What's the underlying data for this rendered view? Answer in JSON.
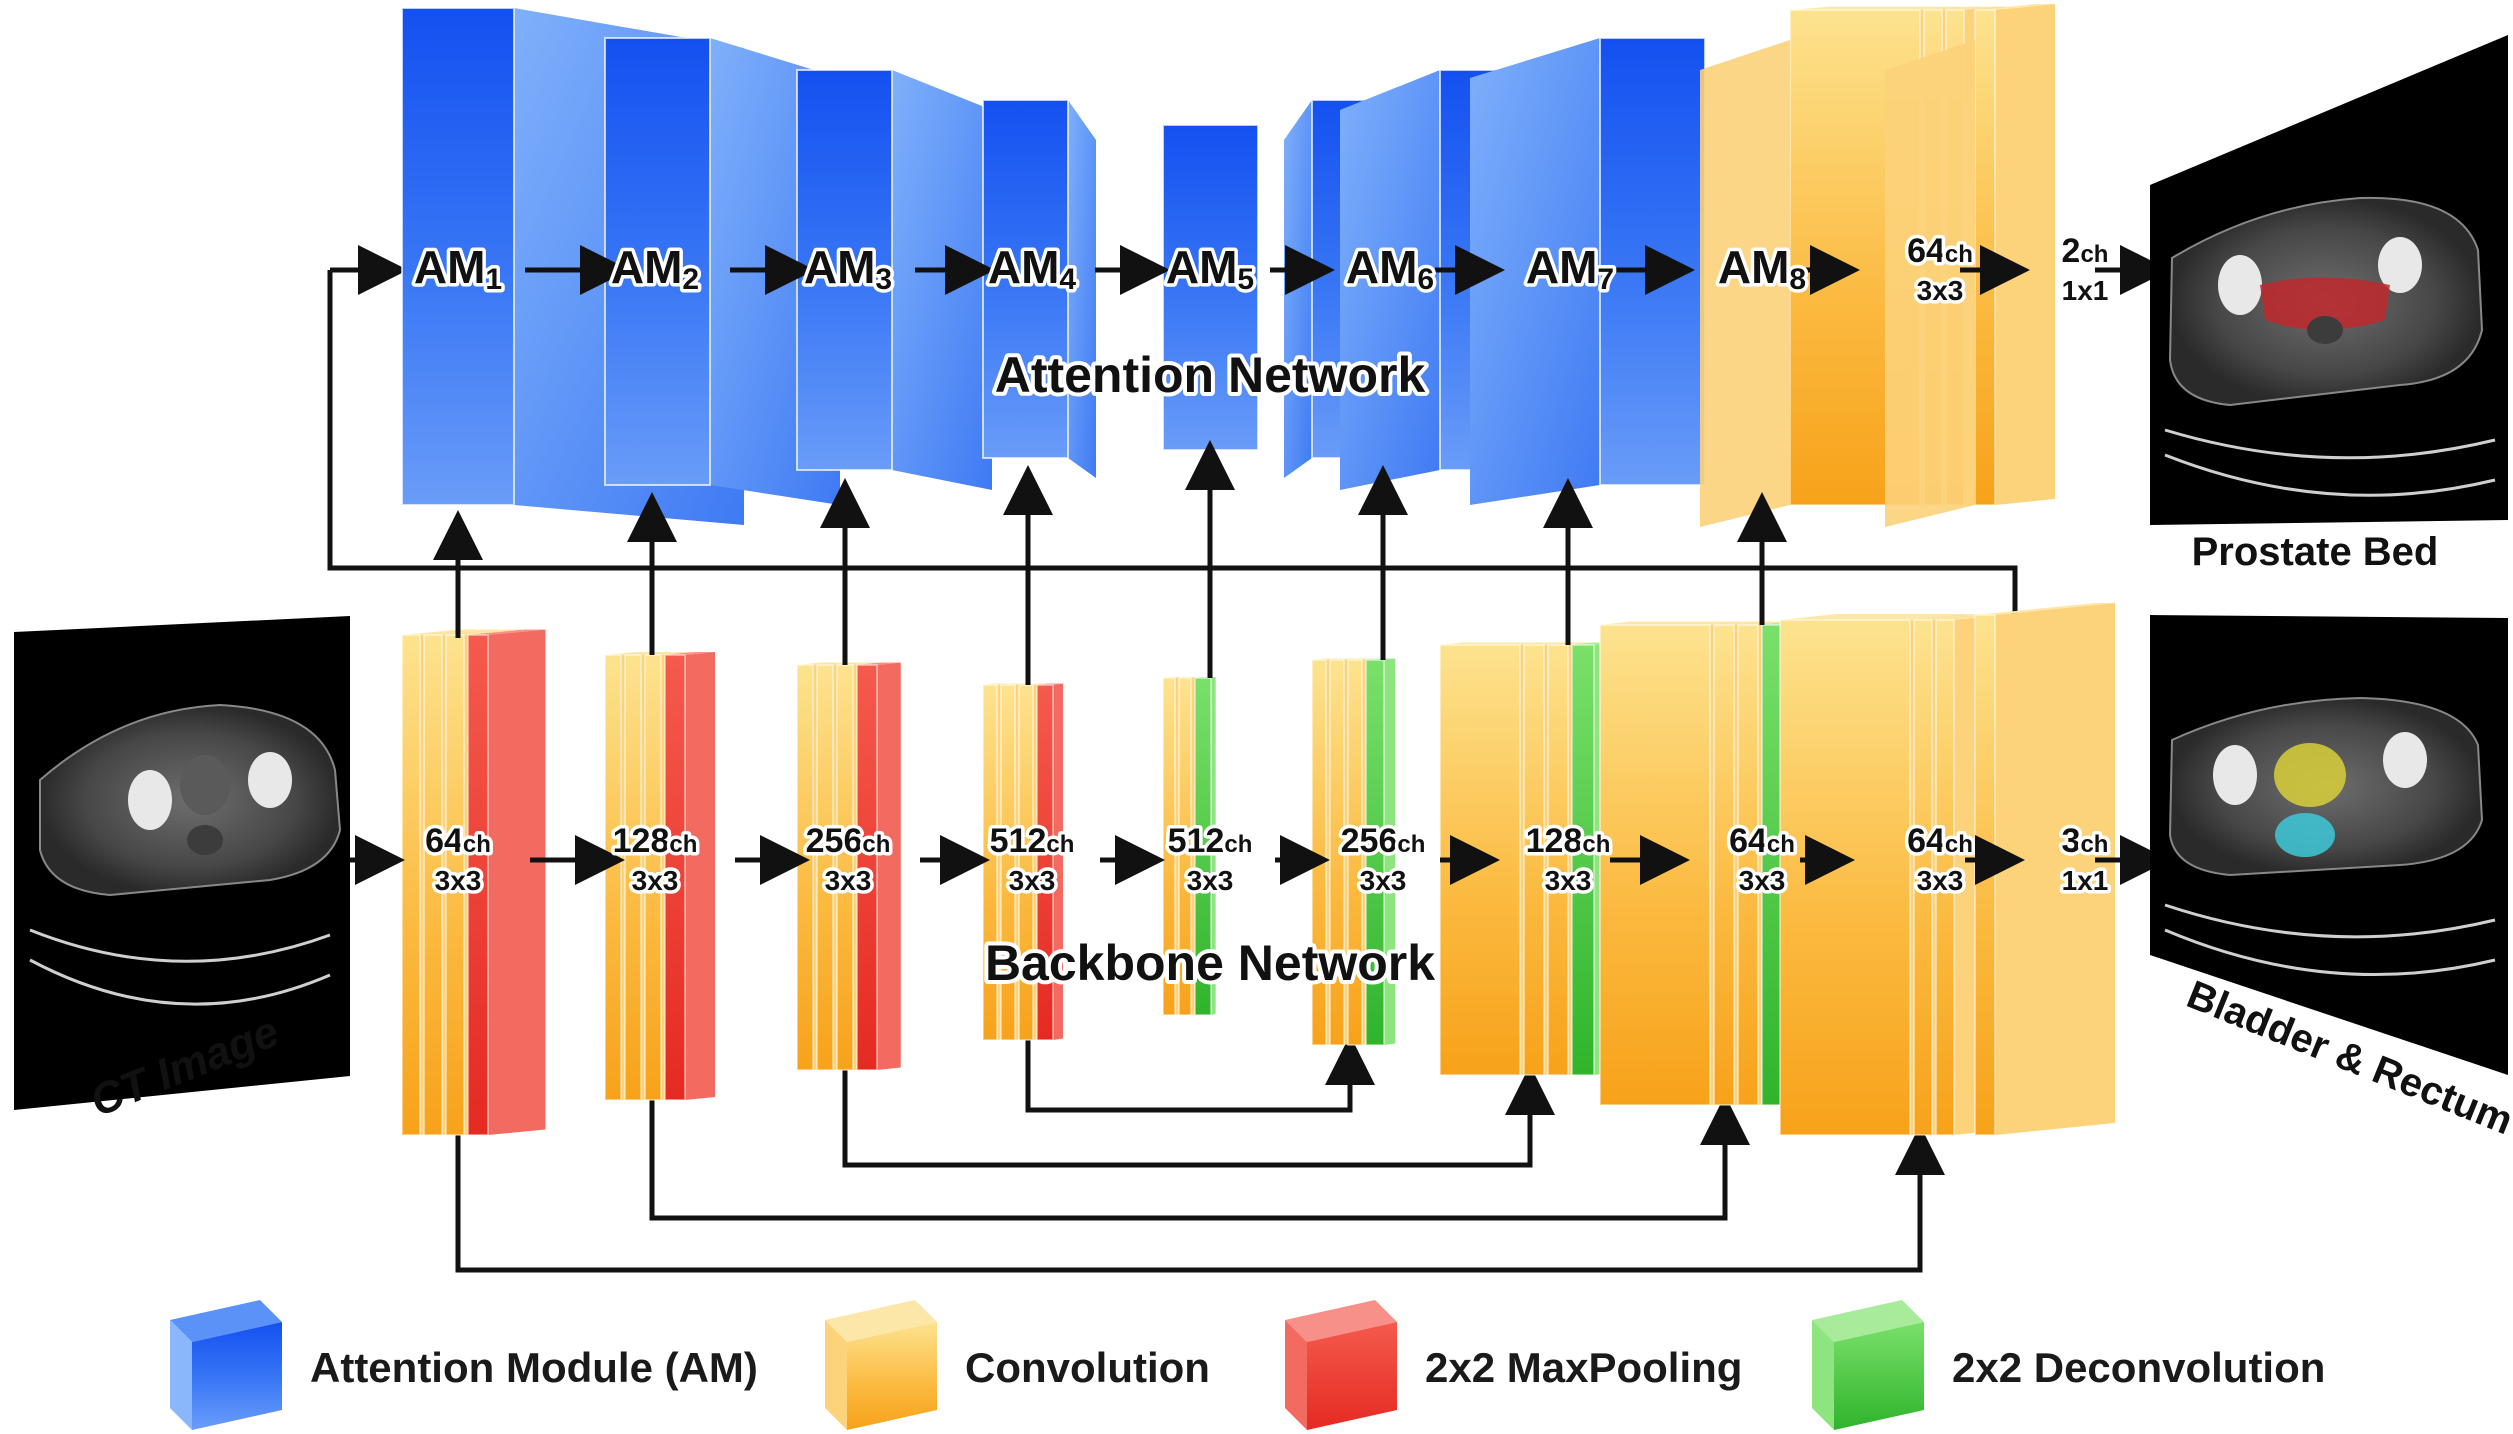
{
  "attention_network": {
    "title": "Attention Network",
    "modules": [
      {
        "name": "AM",
        "sub": "1"
      },
      {
        "name": "AM",
        "sub": "2"
      },
      {
        "name": "AM",
        "sub": "3"
      },
      {
        "name": "AM",
        "sub": "4"
      },
      {
        "name": "AM",
        "sub": "5"
      },
      {
        "name": "AM",
        "sub": "6"
      },
      {
        "name": "AM",
        "sub": "7"
      },
      {
        "name": "AM",
        "sub": "8"
      }
    ],
    "head": [
      {
        "ch": "64",
        "unit": "ch",
        "kernel": "3x3"
      },
      {
        "ch": "2",
        "unit": "ch",
        "kernel": "1x1"
      }
    ]
  },
  "backbone_network": {
    "title": "Backbone Network",
    "stages": [
      {
        "ch": "64",
        "unit": "ch",
        "kernel": "3x3"
      },
      {
        "ch": "128",
        "unit": "ch",
        "kernel": "3x3"
      },
      {
        "ch": "256",
        "unit": "ch",
        "kernel": "3x3"
      },
      {
        "ch": "512",
        "unit": "ch",
        "kernel": "3x3"
      },
      {
        "ch": "512",
        "unit": "ch",
        "kernel": "3x3"
      },
      {
        "ch": "256",
        "unit": "ch",
        "kernel": "3x3"
      },
      {
        "ch": "128",
        "unit": "ch",
        "kernel": "3x3"
      },
      {
        "ch": "64",
        "unit": "ch",
        "kernel": "3x3"
      },
      {
        "ch": "64",
        "unit": "ch",
        "kernel": "3x3"
      },
      {
        "ch": "3",
        "unit": "ch",
        "kernel": "1x1"
      }
    ]
  },
  "images": {
    "input": "CT Image",
    "output_top": "Prostate Bed",
    "output_bottom": "Bladder & Rectum"
  },
  "legend": {
    "items": [
      {
        "label": "Attention Module (AM)",
        "color": "#2f6ff5"
      },
      {
        "label": "Convolution",
        "color": "#fbb63a"
      },
      {
        "label": "2x2 MaxPooling",
        "color": "#f0322a"
      },
      {
        "label": "2x2 Deconvolution",
        "color": "#3ec63a"
      }
    ]
  },
  "colors": {
    "attention": "#2f6ff5",
    "convolution": "#fbb63a",
    "maxpool": "#f0322a",
    "deconv": "#3ec63a",
    "prostate_overlay": "#c0282d",
    "bladder_overlay": "#d8cf3a",
    "rectum_overlay": "#3ec8d8"
  }
}
